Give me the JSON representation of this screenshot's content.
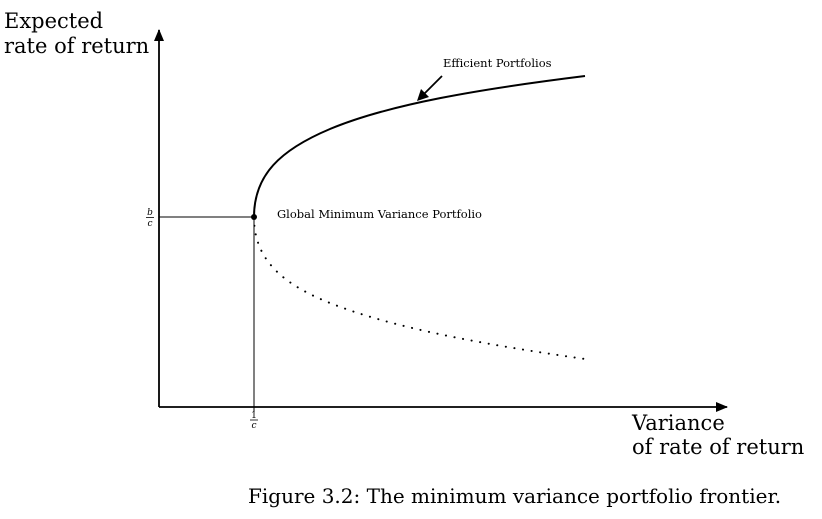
{
  "axes": {
    "y_label_line1": "Expected",
    "y_label_line2": "rate of return",
    "x_label_line1": "Variance",
    "x_label_line2": "of rate of return"
  },
  "ticks": {
    "y_tick_numerator": "b",
    "y_tick_denominator": "c",
    "x_tick_numerator": "1",
    "x_tick_denominator": "c"
  },
  "annotations": {
    "efficient": "Efficient Portfolios",
    "gmv": "Global Minimum Variance Portfolio"
  },
  "caption": "Figure 3.2: The minimum variance portfolio frontier."
}
